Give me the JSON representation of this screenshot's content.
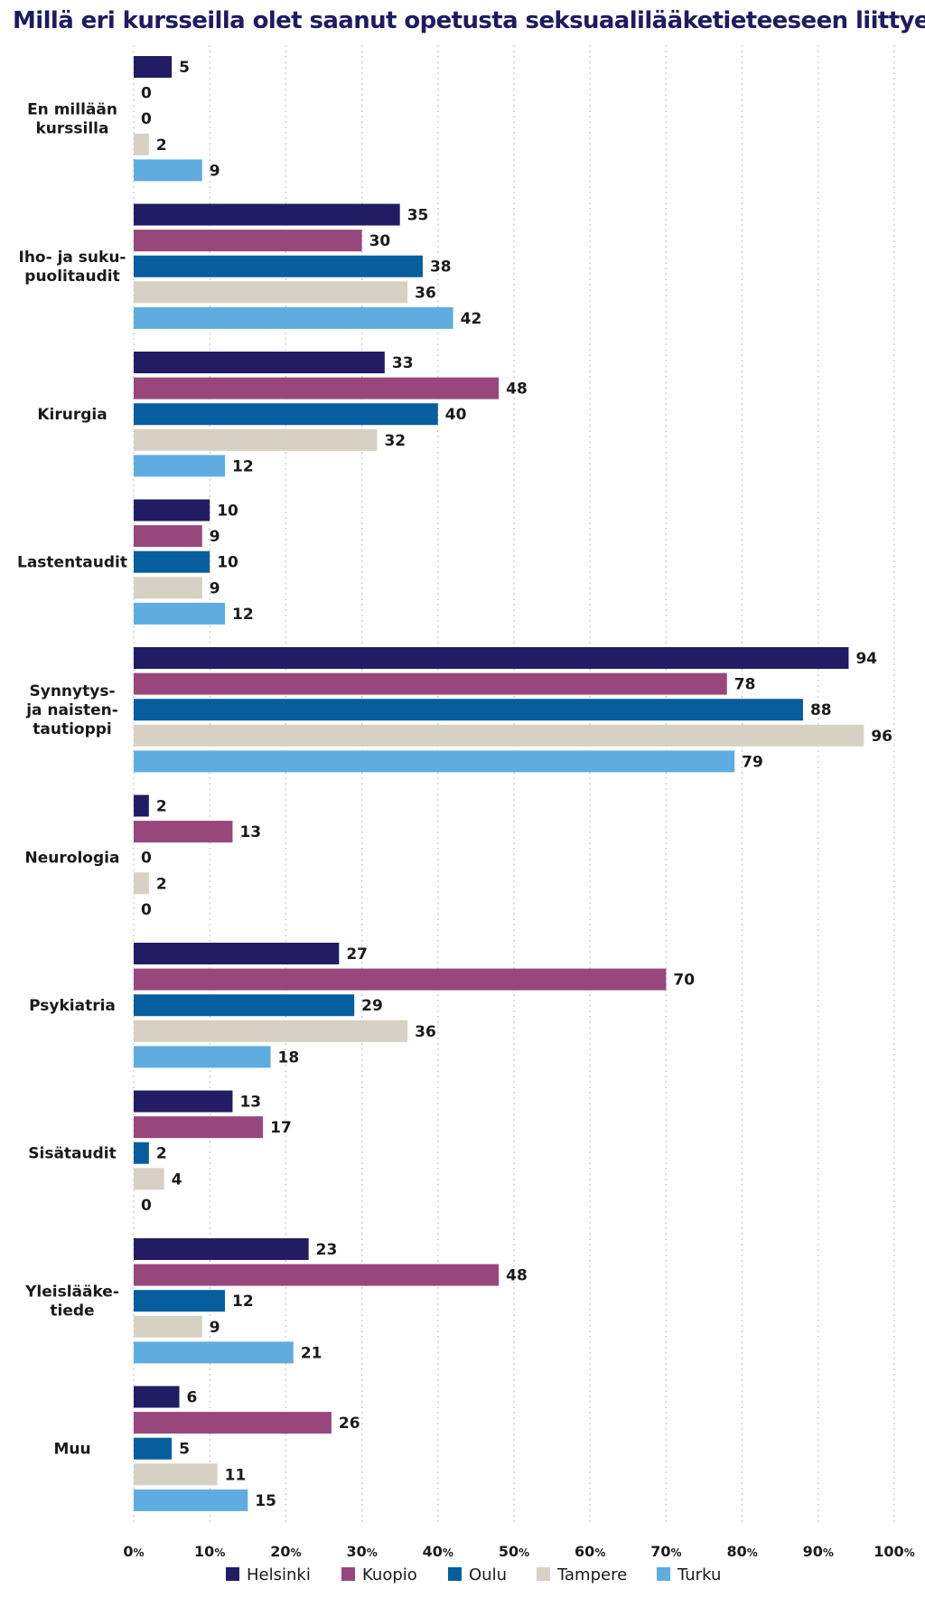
{
  "chart_data": {
    "type": "bar",
    "orientation": "horizontal",
    "title": "Millä eri kursseilla olet saanut opetusta seksuaalilääketieteeseen liittyen?",
    "categories": [
      [
        "En millään",
        "kurssilla"
      ],
      [
        "Iho- ja suku-",
        "puolitaudit"
      ],
      [
        "Kirurgia"
      ],
      [
        "Lastentaudit"
      ],
      [
        "Synnytys-",
        "ja naisten-",
        "tautioppi"
      ],
      [
        "Neurologia"
      ],
      [
        "Psykiatria"
      ],
      [
        "Sisätaudit"
      ],
      [
        "Yleislääke-",
        "tiede"
      ],
      [
        "Muu"
      ]
    ],
    "series": [
      {
        "name": "Helsinki",
        "color": "#221c64",
        "values": [
          5,
          35,
          33,
          10,
          94,
          2,
          27,
          13,
          23,
          6
        ]
      },
      {
        "name": "Kuopio",
        "color": "#98477d",
        "values": [
          0,
          30,
          48,
          9,
          78,
          13,
          70,
          17,
          48,
          26
        ]
      },
      {
        "name": "Oulu",
        "color": "#075e9e",
        "values": [
          0,
          38,
          40,
          10,
          88,
          0,
          29,
          2,
          12,
          5
        ]
      },
      {
        "name": "Tampere",
        "color": "#d7d1c4",
        "values": [
          2,
          36,
          32,
          9,
          96,
          2,
          36,
          4,
          9,
          11
        ]
      },
      {
        "name": "Turku",
        "color": "#5fade0",
        "values": [
          9,
          42,
          12,
          12,
          79,
          0,
          18,
          0,
          21,
          15
        ]
      }
    ],
    "x_ticks": [
      {
        "num": "0",
        "unit": "%"
      },
      {
        "num": "10",
        "unit": "%"
      },
      {
        "num": "20",
        "unit": "%"
      },
      {
        "num": "30",
        "unit": "%"
      },
      {
        "num": "40",
        "unit": "%"
      },
      {
        "num": "50",
        "unit": "%"
      },
      {
        "num": "60",
        "unit": "%"
      },
      {
        "num": "70",
        "unit": "%"
      },
      {
        "num": "80",
        "unit": "%"
      },
      {
        "num": "90",
        "unit": "%"
      },
      {
        "num": "100",
        "unit": "%"
      }
    ],
    "xlim": [
      0,
      100
    ],
    "grid": "vertical dotted",
    "legend_position": "bottom"
  }
}
